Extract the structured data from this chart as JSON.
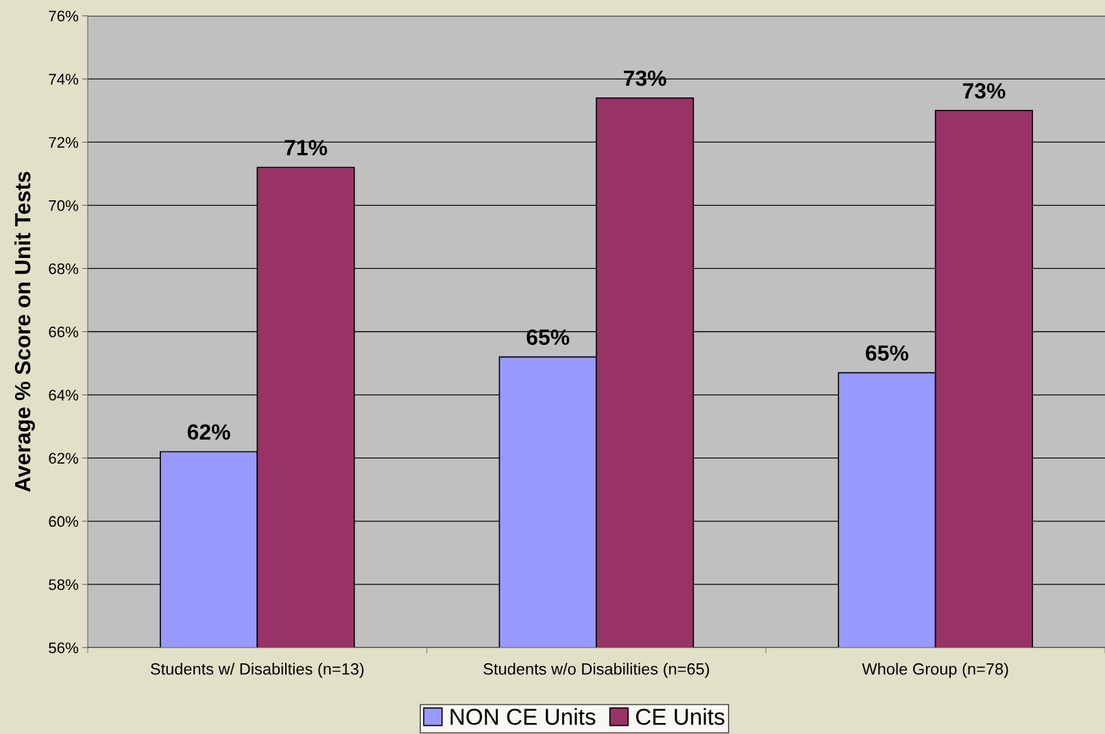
{
  "chart_data": {
    "type": "bar",
    "ylabel": "Average % Score on Unit Tests",
    "categories": [
      "Students w/ Disabilties (n=13)",
      "Students w/o Disabilities (n=65)",
      "Whole Group (n=78)"
    ],
    "series": [
      {
        "name": "NON CE Units",
        "color": "#9999ff",
        "values": [
          62.2,
          65.2,
          64.7
        ],
        "value_labels": [
          "62%",
          "65%",
          "65%"
        ]
      },
      {
        "name": "CE Units",
        "color": "#993366",
        "values": [
          71.2,
          73.4,
          73.0
        ],
        "value_labels": [
          "71%",
          "73%",
          "73%"
        ]
      }
    ],
    "ylim": [
      56,
      76
    ],
    "yticks": [
      {
        "value": 56,
        "label": "56%"
      },
      {
        "value": 58,
        "label": "58%"
      },
      {
        "value": 60,
        "label": "60%"
      },
      {
        "value": 62,
        "label": "62%"
      },
      {
        "value": 64,
        "label": "64%"
      },
      {
        "value": 66,
        "label": "66%"
      },
      {
        "value": 68,
        "label": "68%"
      },
      {
        "value": 70,
        "label": "70%"
      },
      {
        "value": 72,
        "label": "72%"
      },
      {
        "value": 74,
        "label": "74%"
      },
      {
        "value": 76,
        "label": "76%"
      }
    ],
    "grid": "y",
    "legend": "bottom"
  }
}
